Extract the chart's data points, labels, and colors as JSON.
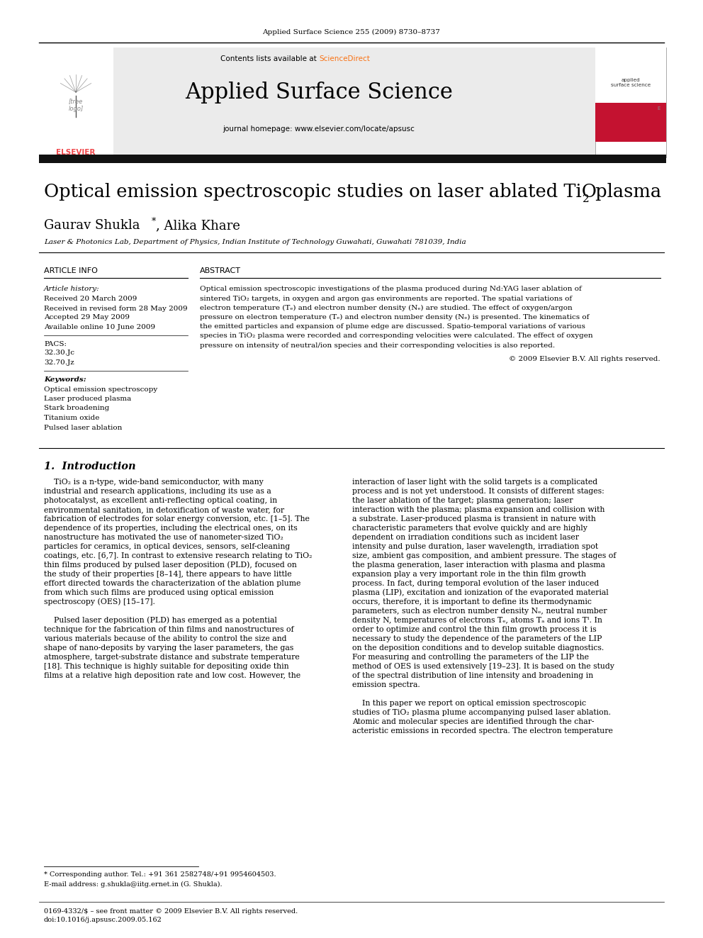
{
  "page_width": 9.92,
  "page_height": 13.23,
  "bg_color": "#ffffff",
  "journal_header": "Applied Surface Science 255 (2009) 8730–8737",
  "contents_line": "Contents lists available at ScienceDirect",
  "journal_name": "Applied Surface Science",
  "journal_homepage": "journal homepage: www.elsevier.com/locate/apsusc",
  "header_bg": "#ebebeb",
  "black_bar_color": "#111111",
  "title": "Optical emission spectroscopic studies on laser ablated TiO",
  "title_sub": "2",
  "title_end": " plasma",
  "authors": "Gaurav Shukla",
  "authors2": ", Alika Khare",
  "affiliation": "Laser & Photonics Lab, Department of Physics, Indian Institute of Technology Guwahati, Guwahati 781039, India",
  "article_info_header": "ARTICLE INFO",
  "abstract_header": "ABSTRACT",
  "article_history_label": "Article history:",
  "received": "Received 20 March 2009",
  "received_revised": "Received in revised form 28 May 2009",
  "accepted": "Accepted 29 May 2009",
  "available": "Available online 10 June 2009",
  "pacs_label": "PACS:",
  "pacs1": "32.30.Jc",
  "pacs2": "32.70.Jz",
  "keywords_label": "Keywords:",
  "keywords": [
    "Optical emission spectroscopy",
    "Laser produced plasma",
    "Stark broadening",
    "Titanium oxide",
    "Pulsed laser ablation"
  ],
  "abstract_lines": [
    "Optical emission spectroscopic investigations of the plasma produced during Nd:YAG laser ablation of",
    "sintered TiO₂ targets, in oxygen and argon gas environments are reported. The spatial variations of",
    "electron temperature (Tₑ) and electron number density (Nₑ) are studied. The effect of oxygen/argon",
    "pressure on electron temperature (Tₑ) and electron number density (Nₑ) is presented. The kinematics of",
    "the emitted particles and expansion of plume edge are discussed. Spatio-temporal variations of various",
    "species in TiO₂ plasma were recorded and corresponding velocities were calculated. The effect of oxygen",
    "pressure on intensity of neutral/ion species and their corresponding velocities is also reported."
  ],
  "copyright": "© 2009 Elsevier B.V. All rights reserved.",
  "intro_header": "1.  Introduction",
  "intro_col1_lines": [
    "    TiO₂ is a n-type, wide-band semiconductor, with many",
    "industrial and research applications, including its use as a",
    "photocatalyst, as excellent anti-reflecting optical coating, in",
    "environmental sanitation, in detoxification of waste water, for",
    "fabrication of electrodes for solar energy conversion, etc. [1–5]. The",
    "dependence of its properties, including the electrical ones, on its",
    "nanostructure has motivated the use of nanometer-sized TiO₂",
    "particles for ceramics, in optical devices, sensors, self-cleaning",
    "coatings, etc. [6,7]. In contrast to extensive research relating to TiO₂",
    "thin films produced by pulsed laser deposition (PLD), focused on",
    "the study of their properties [8–14], there appears to have little",
    "effort directed towards the characterization of the ablation plume",
    "from which such films are produced using optical emission",
    "spectroscopy (OES) [15–17].",
    "",
    "    Pulsed laser deposition (PLD) has emerged as a potential",
    "technique for the fabrication of thin films and nanostructures of",
    "various materials because of the ability to control the size and",
    "shape of nano-deposits by varying the laser parameters, the gas",
    "atmosphere, target-substrate distance and substrate temperature",
    "[18]. This technique is highly suitable for depositing oxide thin",
    "films at a relative high deposition rate and low cost. However, the"
  ],
  "intro_col2_lines": [
    "interaction of laser light with the solid targets is a complicated",
    "process and is not yet understood. It consists of different stages:",
    "the laser ablation of the target; plasma generation; laser",
    "interaction with the plasma; plasma expansion and collision with",
    "a substrate. Laser-produced plasma is transient in nature with",
    "characteristic parameters that evolve quickly and are highly",
    "dependent on irradiation conditions such as incident laser",
    "intensity and pulse duration, laser wavelength, irradiation spot",
    "size, ambient gas composition, and ambient pressure. The stages of",
    "the plasma generation, laser interaction with plasma and plasma",
    "expansion play a very important role in the thin film growth",
    "process. In fact, during temporal evolution of the laser induced",
    "plasma (LIP), excitation and ionization of the evaporated material",
    "occurs, therefore, it is important to define its thermodynamic",
    "parameters, such as electron number density Nₑ, neutral number",
    "density N, temperatures of electrons Tₑ, atoms Tₐ and ions Tᴵ. In",
    "order to optimize and control the thin film growth process it is",
    "necessary to study the dependence of the parameters of the LIP",
    "on the deposition conditions and to develop suitable diagnostics.",
    "For measuring and controlling the parameters of the LIP the",
    "method of OES is used extensively [19–23]. It is based on the study",
    "of the spectral distribution of line intensity and broadening in",
    "emission spectra.",
    "",
    "    In this paper we report on optical emission spectroscopic",
    "studies of TiO₂ plasma plume accompanying pulsed laser ablation.",
    "Atomic and molecular species are identified through the char-",
    "acteristic emissions in recorded spectra. The electron temperature"
  ],
  "footnote1": "* Corresponding author. Tel.: +91 361 2582748/+91 9954604503.",
  "footnote2": "E-mail address: g.shukla@iitg.ernet.in (G. Shukla).",
  "footer1": "0169-4332/$ – see front matter © 2009 Elsevier B.V. All rights reserved.",
  "footer2": "doi:10.1016/j.apsusc.2009.05.162",
  "elsevier_color": "#f0464a",
  "link_color": "#f97316"
}
